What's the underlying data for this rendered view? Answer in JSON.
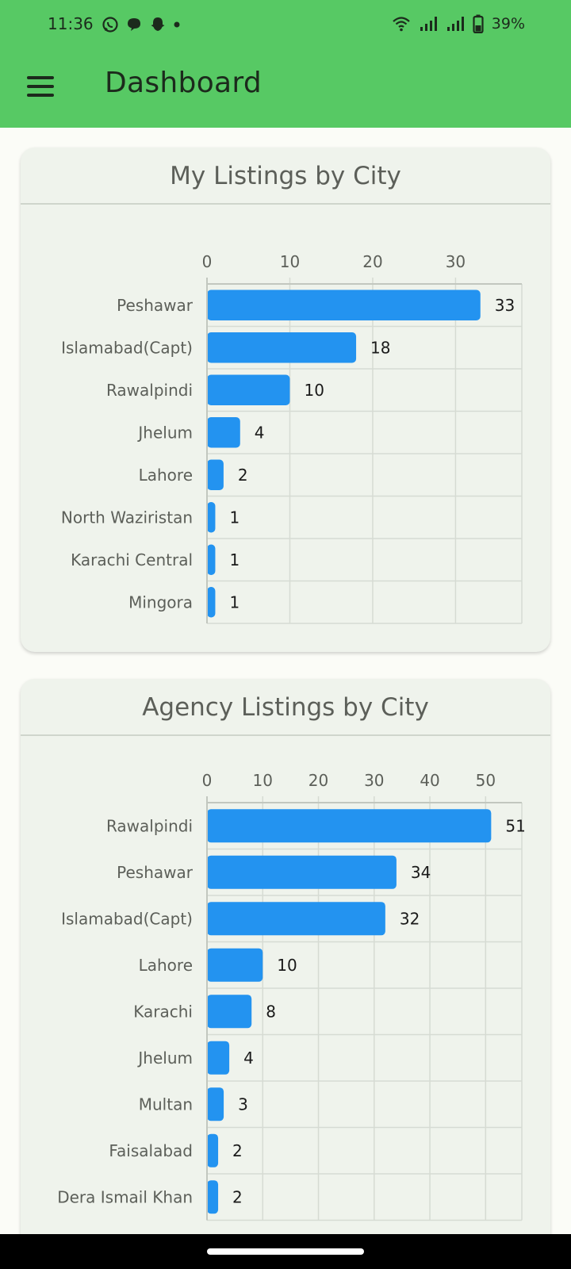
{
  "status_bar": {
    "time": "11:36",
    "battery": "39%",
    "icons": [
      "whatsapp-icon",
      "chat-icon",
      "snapchat-icon",
      "dot-icon",
      "wifi-icon",
      "signal-icon",
      "signal-icon",
      "battery-icon"
    ]
  },
  "app_bar": {
    "title": "Dashboard",
    "menu_icon": "hamburger-menu-icon",
    "background": "#57c964"
  },
  "charts": {
    "bar_color": "#2393f0"
  },
  "chart_data": [
    {
      "type": "bar",
      "orientation": "horizontal",
      "title": "My Listings by City",
      "categories": [
        "Peshawar",
        "Islamabad(Capt)",
        "Rawalpindi",
        "Jhelum",
        "Lahore",
        "North Waziristan",
        "Karachi Central",
        "Mingora"
      ],
      "values": [
        33,
        18,
        10,
        4,
        2,
        1,
        1,
        1
      ],
      "xlim": [
        0,
        38
      ],
      "ticks": [
        0,
        10,
        20,
        30
      ],
      "tick_labels": [
        "0",
        "10",
        "20",
        "30"
      ],
      "axis_position": "top",
      "grid": true,
      "data_labels": true
    },
    {
      "type": "bar",
      "orientation": "horizontal",
      "title": "Agency Listings by City",
      "categories": [
        "Rawalpindi",
        "Peshawar",
        "Islamabad(Capt)",
        "Lahore",
        "Karachi",
        "Jhelum",
        "Multan",
        "Faisalabad",
        "Dera Ismail Khan"
      ],
      "values": [
        51,
        34,
        32,
        10,
        8,
        4,
        3,
        2,
        2
      ],
      "xlim": [
        0,
        56.5
      ],
      "ticks": [
        0,
        10,
        20,
        30,
        40,
        50
      ],
      "tick_labels": [
        "0",
        "10",
        "20",
        "30",
        "40",
        "50"
      ],
      "axis_position": "top",
      "grid": true,
      "data_labels": true
    }
  ]
}
